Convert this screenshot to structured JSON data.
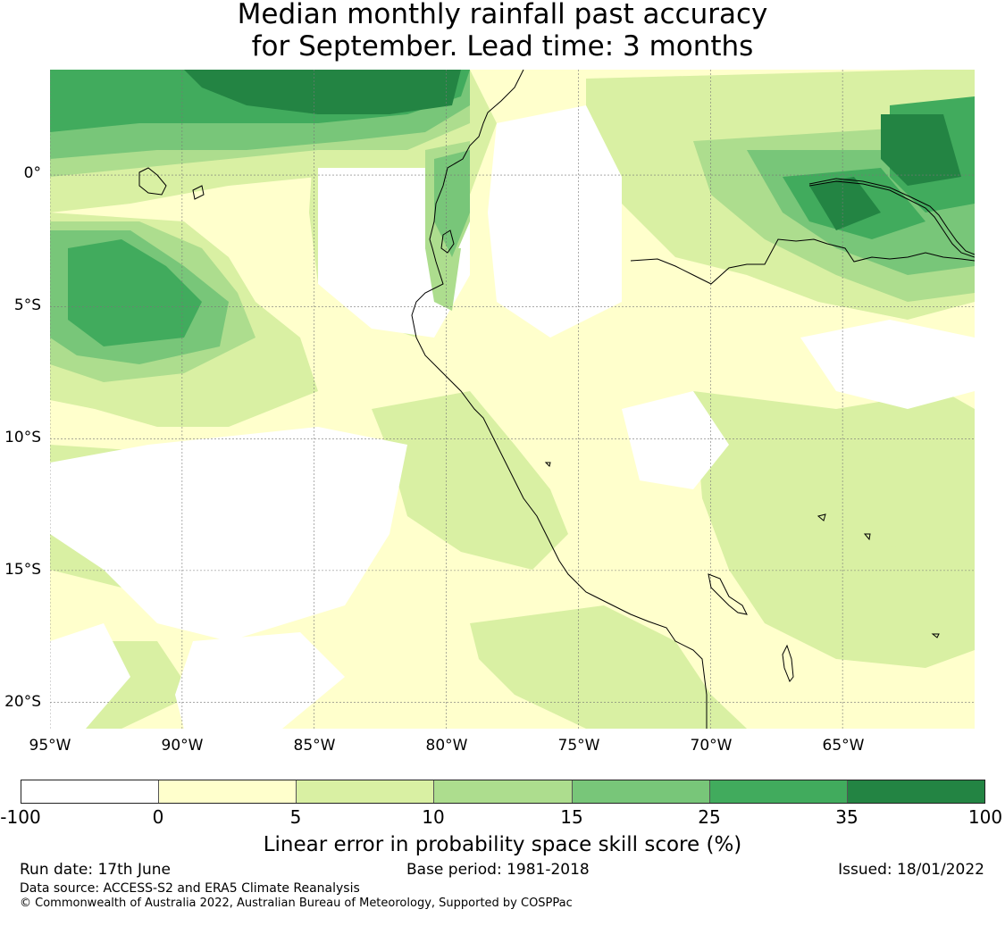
{
  "title_line1": "Median monthly rainfall past accuracy",
  "title_line2": "for September. Lead time: 3 months",
  "map": {
    "lon_range": [
      -95,
      -60
    ],
    "lat_range": [
      -21,
      4
    ],
    "lat_labels": [
      "0°",
      "5°S",
      "10°S",
      "15°S",
      "20°S"
    ],
    "lon_labels": [
      "95°W",
      "90°W",
      "85°W",
      "80°W",
      "75°W",
      "70°W",
      "65°W"
    ]
  },
  "colorbar": {
    "ticks": [
      "-100",
      "0",
      "5",
      "10",
      "15",
      "25",
      "35",
      "100"
    ],
    "colors": [
      "#ffffff",
      "#ffffcc",
      "#d9f0a3",
      "#addd8e",
      "#78c679",
      "#41ab5d",
      "#238443"
    ],
    "label": "Linear error in probability space skill score (%)"
  },
  "footer": {
    "run_date": "Run date: 17th June",
    "base_period": "Base period: 1981-2018",
    "issued": "Issued: 18/01/2022",
    "data_source": "Data source: ACCESS-S2 and ERA5 Climate Reanalysis",
    "copyright": "© Commonwealth of Australia 2022, Australian Bureau of Meteorology, Supported by COSPPac"
  }
}
